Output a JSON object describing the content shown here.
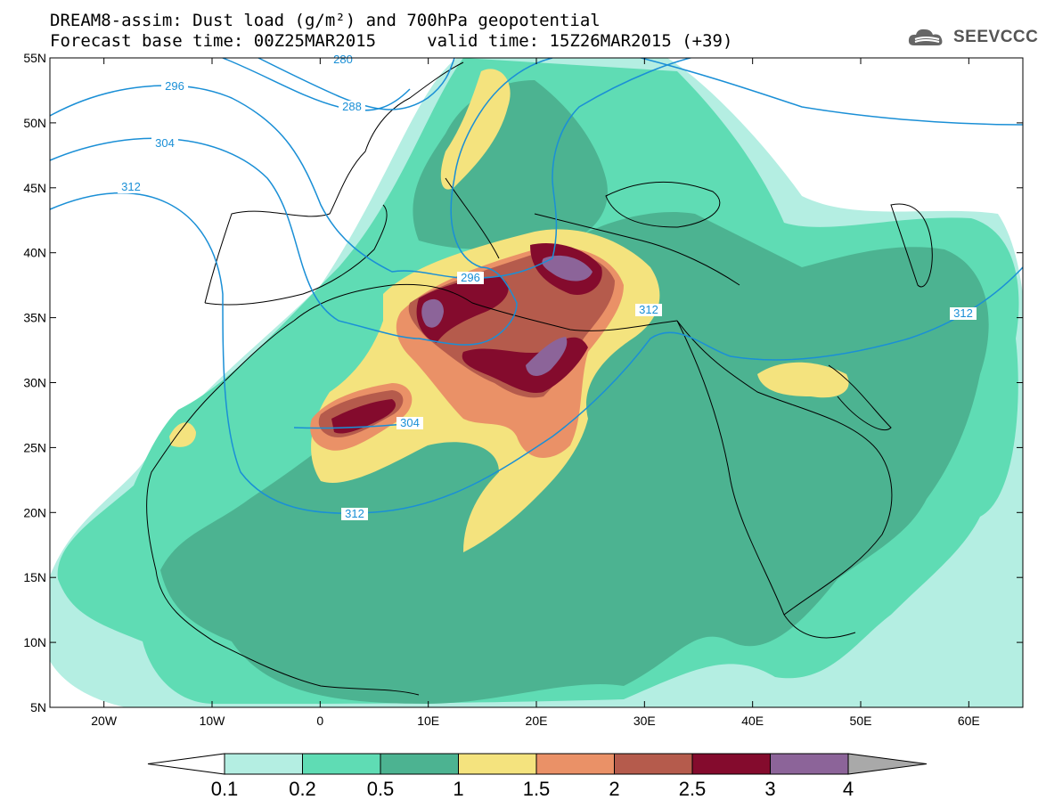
{
  "title": {
    "line1": "DREAM8-assim: Dust load (g/m²) and 700hPa geopotential",
    "line2": "Forecast base time: 00Z25MAR2015     valid time: 15Z26MAR2015 (+39)"
  },
  "logo": {
    "text": "SEEVCCC",
    "icon": "cloud-logo-icon"
  },
  "map": {
    "lon_range": [
      -25,
      65
    ],
    "lat_range": [
      5,
      55
    ],
    "lon_ticks": [
      {
        "value": -20,
        "label": "20W"
      },
      {
        "value": -10,
        "label": "10W"
      },
      {
        "value": 0,
        "label": "0"
      },
      {
        "value": 10,
        "label": "10E"
      },
      {
        "value": 20,
        "label": "20E"
      },
      {
        "value": 30,
        "label": "30E"
      },
      {
        "value": 40,
        "label": "40E"
      },
      {
        "value": 50,
        "label": "50E"
      },
      {
        "value": 60,
        "label": "60E"
      }
    ],
    "lat_ticks": [
      {
        "value": 55,
        "label": "55N"
      },
      {
        "value": 50,
        "label": "50N"
      },
      {
        "value": 45,
        "label": "45N"
      },
      {
        "value": 40,
        "label": "40N"
      },
      {
        "value": 35,
        "label": "35N"
      },
      {
        "value": 30,
        "label": "30N"
      },
      {
        "value": 25,
        "label": "25N"
      },
      {
        "value": 20,
        "label": "20N"
      },
      {
        "value": 15,
        "label": "15N"
      },
      {
        "value": 10,
        "label": "10N"
      },
      {
        "value": 5,
        "label": "5N"
      }
    ],
    "contour_labels": [
      "280",
      "288",
      "296",
      "304",
      "312",
      "296",
      "304",
      "312",
      "312",
      "312"
    ],
    "colors": {
      "contour": "#1a8fd6",
      "coast": "#000000"
    }
  },
  "colorbar": {
    "levels": [
      "0.1",
      "0.2",
      "0.5",
      "1",
      "1.5",
      "2",
      "2.5",
      "3",
      "4"
    ],
    "colors": [
      "#b4eee2",
      "#5fdcb4",
      "#4cb391",
      "#f4e37e",
      "#ea9167",
      "#b55b4c",
      "#840b2d",
      "#8c6499"
    ],
    "over_color": "#a9a9a9",
    "under_color": "#ffffff"
  }
}
